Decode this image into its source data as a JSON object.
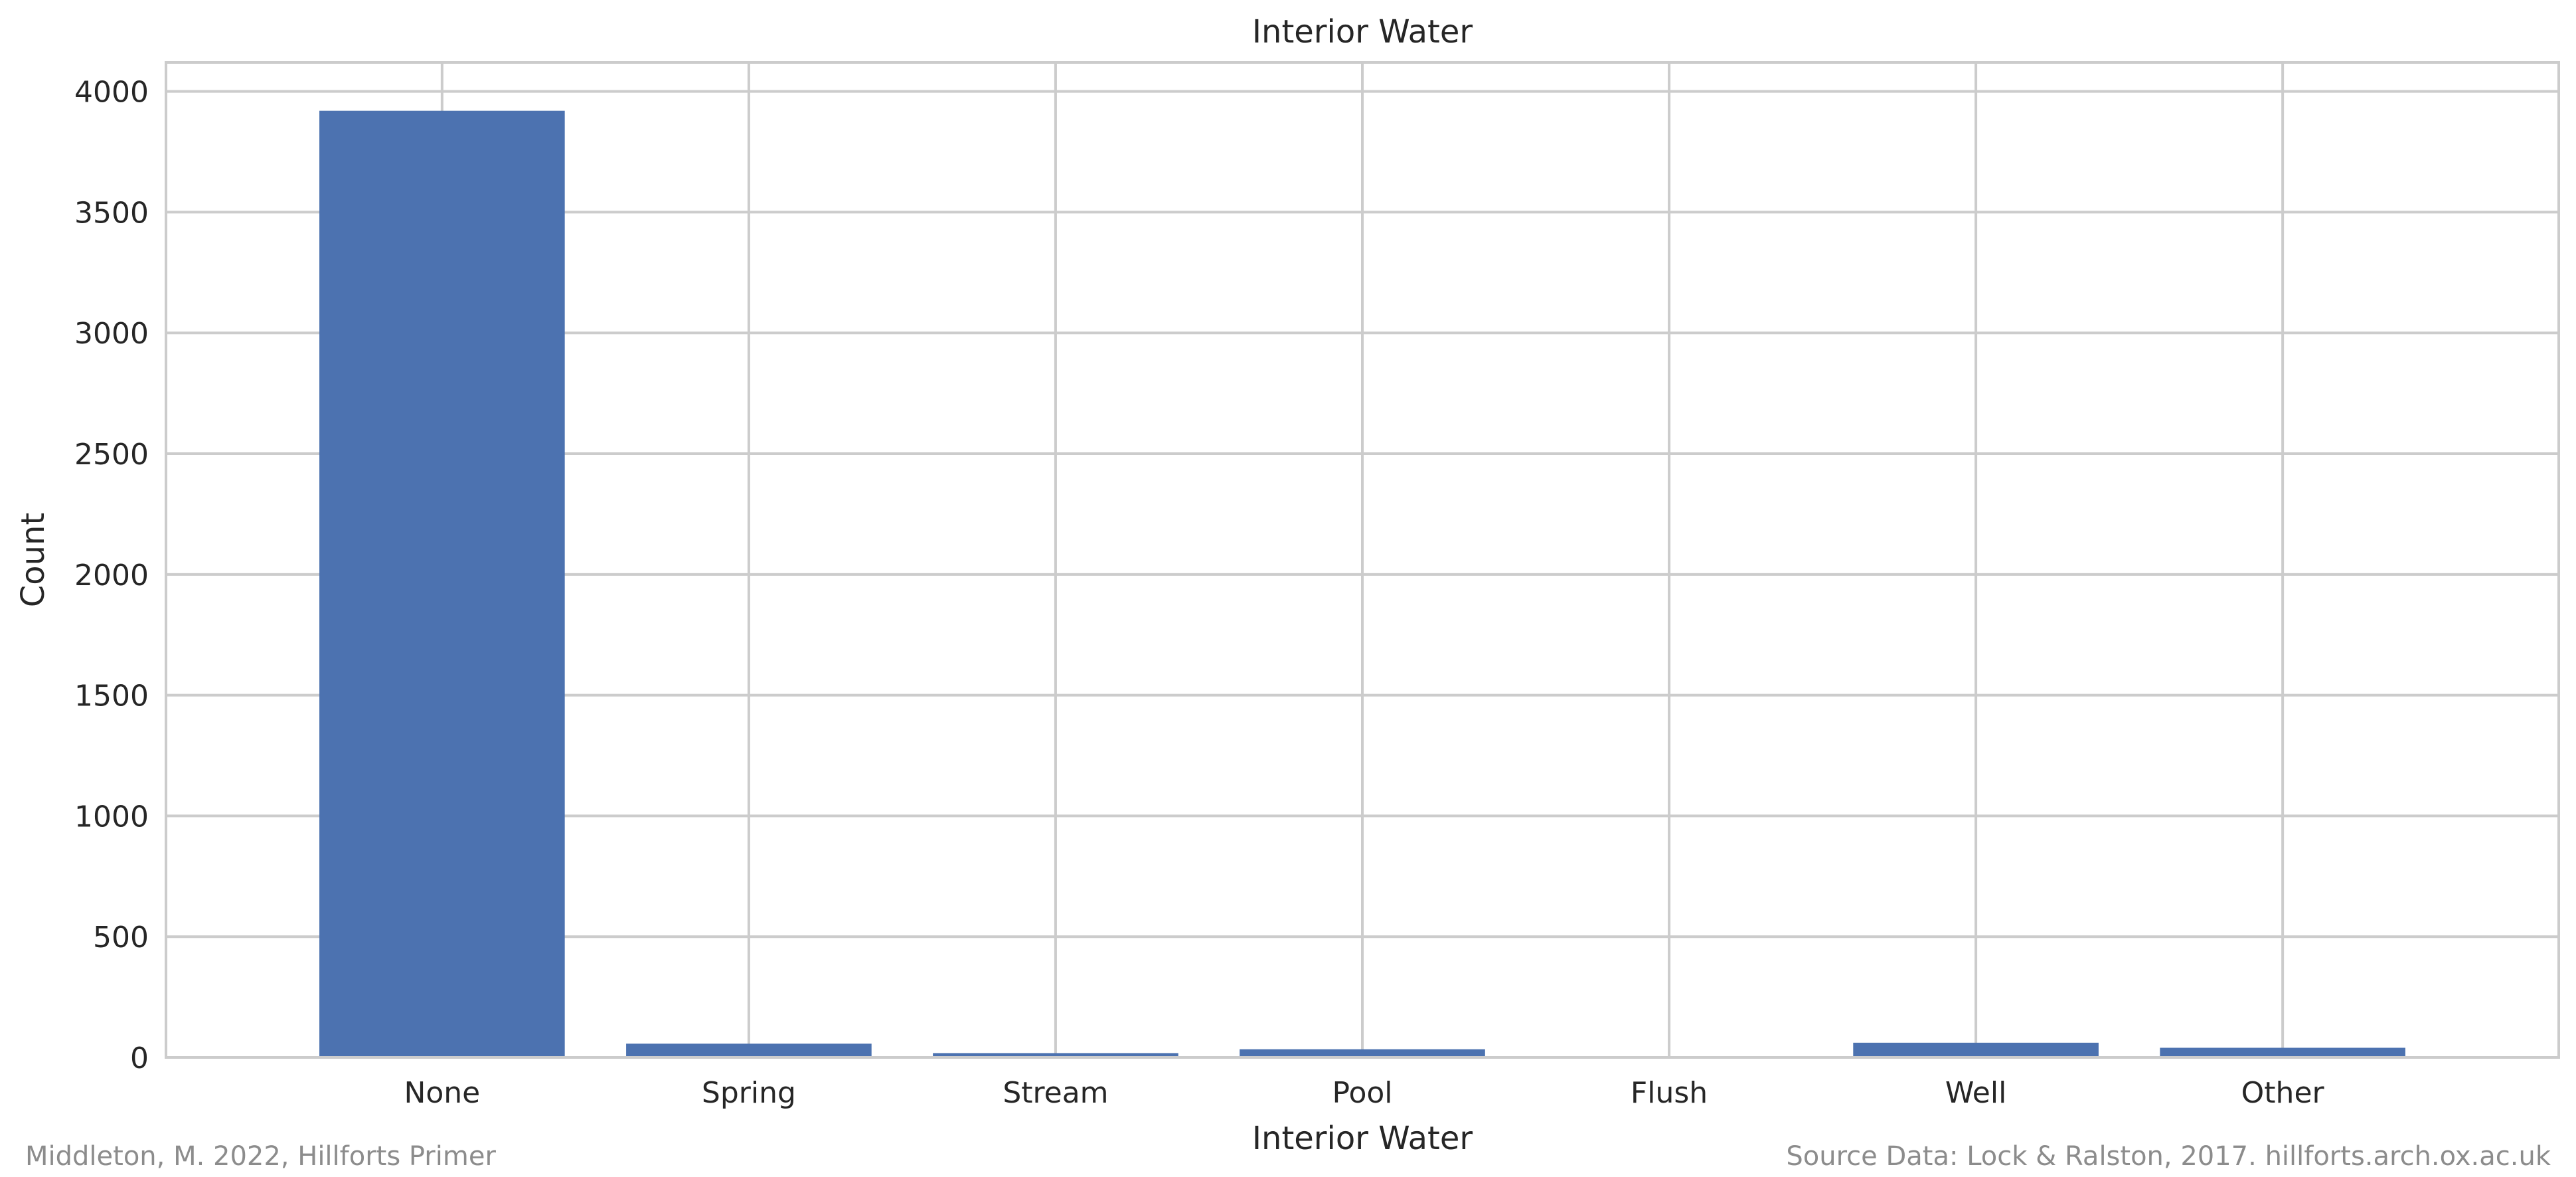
{
  "chart_data": {
    "type": "bar",
    "title": "Interior Water",
    "xlabel": "Interior Water",
    "ylabel": "Count",
    "categories": [
      "None",
      "Spring",
      "Stream",
      "Pool",
      "Flush",
      "Well",
      "Other"
    ],
    "values": [
      3920,
      57,
      18,
      34,
      3,
      61,
      40
    ],
    "ylim": [
      0,
      4120
    ],
    "yticks": [
      0,
      500,
      1000,
      1500,
      2000,
      2500,
      3000,
      3500,
      4000
    ],
    "grid": true,
    "bar_color": "#4c72b0",
    "grid_color": "#cccccc"
  },
  "footer": {
    "left": "Middleton, M. 2022, Hillforts Primer",
    "right": "Source Data: Lock & Ralston, 2017. hillforts.arch.ox.ac.uk"
  }
}
